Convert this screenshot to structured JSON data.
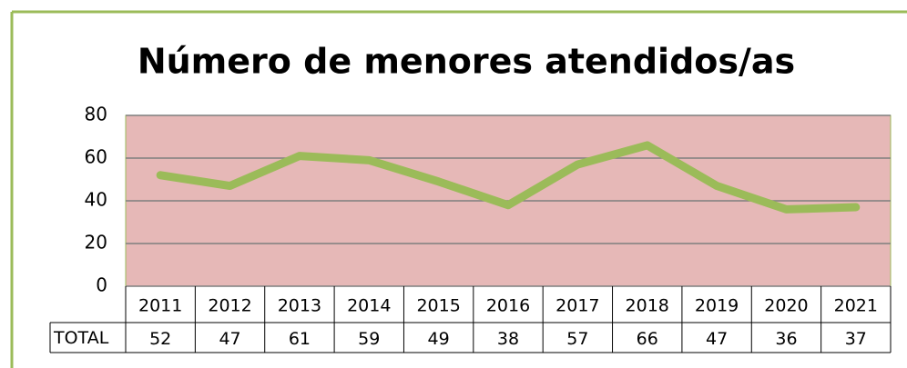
{
  "chart_data": {
    "type": "line",
    "title": "Número de menores atendidos/as",
    "categories": [
      "2011",
      "2012",
      "2013",
      "2014",
      "2015",
      "2016",
      "2017",
      "2018",
      "2019",
      "2020",
      "2021"
    ],
    "series": [
      {
        "name": "TOTAL",
        "color": "#9bbb59",
        "values": [
          52,
          47,
          61,
          59,
          49,
          38,
          57,
          66,
          47,
          36,
          37
        ]
      }
    ],
    "ylim": [
      0,
      80
    ],
    "yticks": [
      0,
      20,
      40,
      60,
      80
    ],
    "grid": true,
    "data_table": true
  }
}
